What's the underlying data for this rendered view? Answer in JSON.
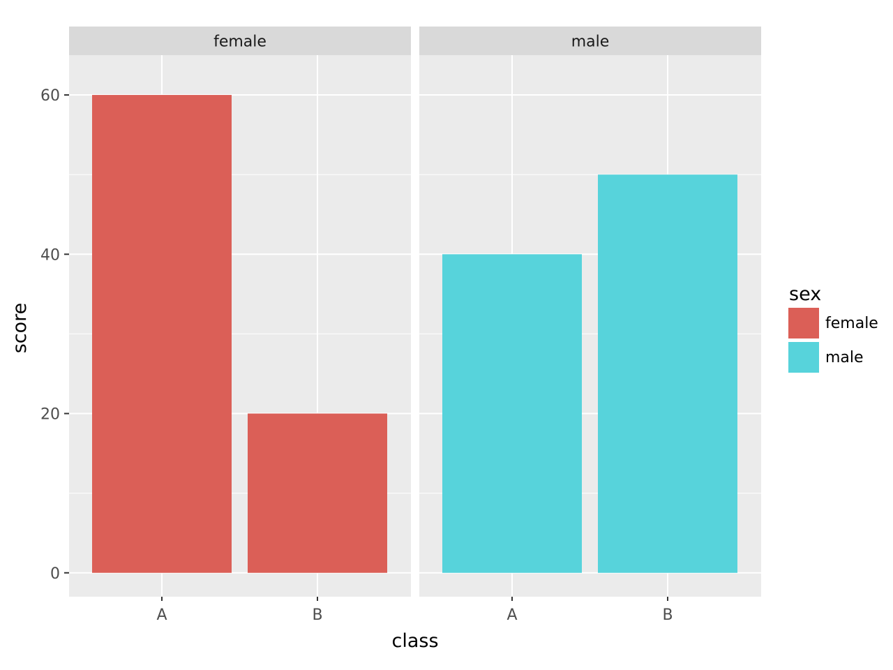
{
  "chart_data": {
    "type": "bar",
    "facet_by": "sex",
    "xlabel": "class",
    "ylabel": "score",
    "ylim": [
      -3,
      65
    ],
    "y_ticks": [
      0,
      20,
      40,
      60
    ],
    "y_minor_ticks": [
      10,
      30,
      50
    ],
    "categories": [
      "A",
      "B"
    ],
    "panels": [
      {
        "label": "female",
        "color": "#DB5F57",
        "values": [
          60,
          20
        ]
      },
      {
        "label": "male",
        "color": "#57D3DB",
        "values": [
          40,
          50
        ]
      }
    ],
    "legend": {
      "title": "sex",
      "position": "right",
      "entries": [
        {
          "label": "female",
          "color": "#DB5F57"
        },
        {
          "label": "male",
          "color": "#57D3DB"
        }
      ]
    },
    "grid": true,
    "panel_background": "#EBEBEB",
    "strip_background": "#D9D9D9"
  }
}
